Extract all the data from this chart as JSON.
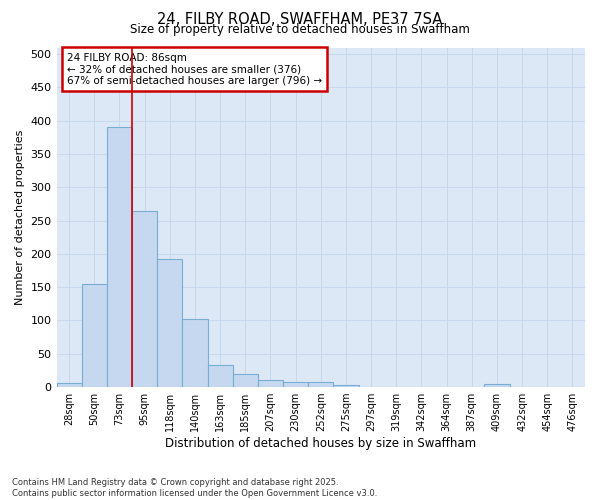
{
  "title_line1": "24, FILBY ROAD, SWAFFHAM, PE37 7SA",
  "title_line2": "Size of property relative to detached houses in Swaffham",
  "xlabel": "Distribution of detached houses by size in Swaffham",
  "ylabel": "Number of detached properties",
  "bar_values": [
    6,
    155,
    390,
    265,
    192,
    102,
    33,
    19,
    10,
    8,
    7,
    3,
    0,
    0,
    0,
    0,
    0,
    4,
    0,
    0,
    0
  ],
  "bar_labels": [
    "28sqm",
    "50sqm",
    "73sqm",
    "95sqm",
    "118sqm",
    "140sqm",
    "163sqm",
    "185sqm",
    "207sqm",
    "230sqm",
    "252sqm",
    "275sqm",
    "297sqm",
    "319sqm",
    "342sqm",
    "364sqm",
    "387sqm",
    "409sqm",
    "432sqm",
    "454sqm",
    "476sqm"
  ],
  "bar_color": "#c5d8f0",
  "bar_edge_color": "#7aadd4",
  "ylim": [
    0,
    510
  ],
  "yticks": [
    0,
    50,
    100,
    150,
    200,
    250,
    300,
    350,
    400,
    450,
    500
  ],
  "property_line_x": 2.5,
  "annotation_text_line1": "24 FILBY ROAD: 86sqm",
  "annotation_text_line2": "← 32% of detached houses are smaller (376)",
  "annotation_text_line3": "67% of semi-detached houses are larger (796) →",
  "annotation_box_color": "#ffffff",
  "annotation_border_color": "#cc0000",
  "vline_color": "#cc0000",
  "grid_color": "#c8d8ec",
  "plot_bg_color": "#dce8f5",
  "fig_bg_color": "#ffffff",
  "footnote1": "Contains HM Land Registry data © Crown copyright and database right 2025.",
  "footnote2": "Contains public sector information licensed under the Open Government Licence v3.0."
}
